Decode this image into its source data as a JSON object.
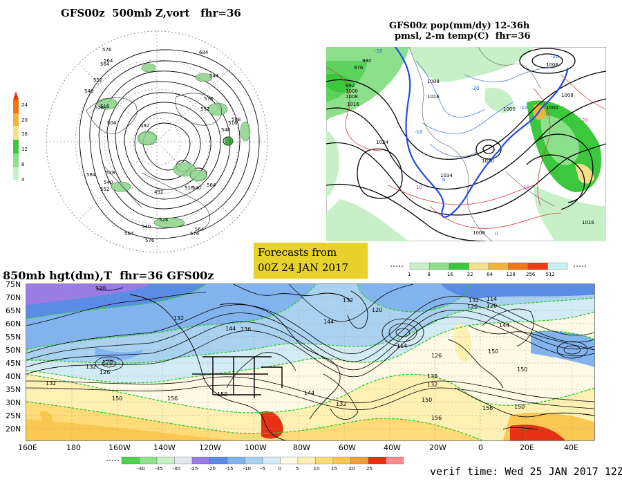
{
  "panel_500mb": {
    "title": "GFS00z  500mb Z,vort   fhr=36",
    "legend_ticks": [
      "24",
      "20",
      "16",
      "12",
      "8",
      "4"
    ],
    "contour_labels": [
      "576",
      "564",
      "552",
      "540",
      "528",
      "516",
      "504",
      "492",
      "492",
      "528",
      "540",
      "552",
      "564",
      "576",
      "564",
      "540",
      "528",
      "516",
      "564",
      "540",
      "552",
      "578",
      "516",
      "508",
      "540",
      "684",
      "544",
      "584",
      "576",
      "564"
    ]
  },
  "panel_pop": {
    "title_line1": "GFS00z pop(mm/dy) 12-36h",
    "title_line2": "pmsl, 2-m temp(C)  fhr=36",
    "pressure_labels": [
      "984",
      "976",
      "992",
      "1000",
      "1008",
      "1016",
      "1024",
      "1008",
      "1016",
      "1000",
      "1008",
      "1030",
      "1034",
      "1008",
      "1016",
      "1000",
      "1008"
    ],
    "temp_labels": [
      "-10",
      "-20",
      "-10",
      "0",
      "10",
      "10",
      "20",
      "-20",
      "-10",
      "0"
    ],
    "scale_values": [
      "1",
      "8",
      "16",
      "32",
      "64",
      "128",
      "256",
      "512"
    ],
    "scale_colors": [
      "#c8f0c8",
      "#8ce08c",
      "#3cc83c",
      "#f5e08c",
      "#f0b43c",
      "#f07814",
      "#f03c14",
      "#c8f0f0"
    ]
  },
  "banner": {
    "line1": "Forecasts from",
    "line2": "00Z 24 JAN 2017"
  },
  "panel_850mb": {
    "title": "850mb hgt(dm),T  fhr=36 GFS00z",
    "lat_labels": [
      "75N",
      "70N",
      "65N",
      "60N",
      "55N",
      "50N",
      "45N",
      "40N",
      "35N",
      "30N",
      "25N",
      "20N"
    ],
    "lon_labels": [
      "160E",
      "180",
      "160W",
      "140W",
      "120W",
      "100W",
      "80W",
      "60W",
      "40W",
      "20W",
      "0",
      "20E",
      "40E"
    ],
    "height_labels": [
      "120",
      "132",
      "144",
      "120",
      "126",
      "132",
      "132",
      "150",
      "156",
      "120",
      "132",
      "144",
      "150",
      "144",
      "114",
      "120",
      "132",
      "132",
      "126",
      "138",
      "150",
      "156",
      "150",
      "156",
      "114",
      "120",
      "144",
      "150",
      "150",
      "132",
      "136"
    ],
    "temp_scale_values": [
      "-40",
      "-35",
      "-30",
      "-25",
      "-20",
      "-15",
      "-10",
      "-5",
      "0",
      "5",
      "10",
      "15",
      "20",
      "25"
    ],
    "temp_scale_colors": [
      "#50d250",
      "#8ce68c",
      "#c8f0c8",
      "#e6e6f0",
      "#9b7be6",
      "#5a8ce6",
      "#82b4f0",
      "#aad2f0",
      "#d2ebf5",
      "#fffae6",
      "#fff0b4",
      "#ffdc78",
      "#fac850",
      "#f0a03c",
      "#e63214",
      "#ff8c8c"
    ]
  },
  "verif_time": "verif time: Wed 25 JAN 2017 12Z"
}
